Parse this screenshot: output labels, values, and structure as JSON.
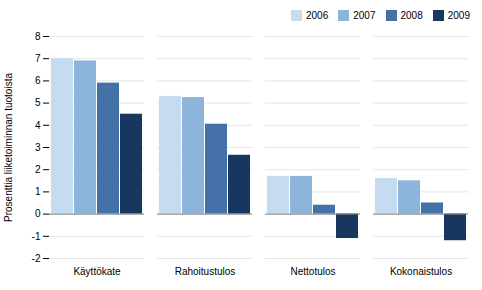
{
  "chart_data": {
    "type": "bar",
    "categories": [
      "Käyttökate",
      "Rahoitustulos",
      "Nettotulos",
      "Kokonaistulos"
    ],
    "series": [
      {
        "name": "2006",
        "color": "#c5dcf0",
        "values": [
          7.0,
          5.3,
          1.7,
          1.6
        ]
      },
      {
        "name": "2007",
        "color": "#8db4da",
        "values": [
          6.9,
          5.25,
          1.7,
          1.5
        ]
      },
      {
        "name": "2008",
        "color": "#4472a8",
        "values": [
          5.9,
          4.05,
          0.4,
          0.5
        ]
      },
      {
        "name": "2009",
        "color": "#17375e",
        "values": [
          4.5,
          2.65,
          -1.1,
          -1.2
        ]
      }
    ],
    "ylabel": "Prosenttia liiketoiminnan tuotoista",
    "ylim": [
      -2,
      8
    ],
    "yticks": [
      -2,
      -1,
      0,
      1,
      2,
      3,
      4,
      5,
      6,
      7,
      8
    ],
    "grid": true,
    "legend": "upper right"
  }
}
